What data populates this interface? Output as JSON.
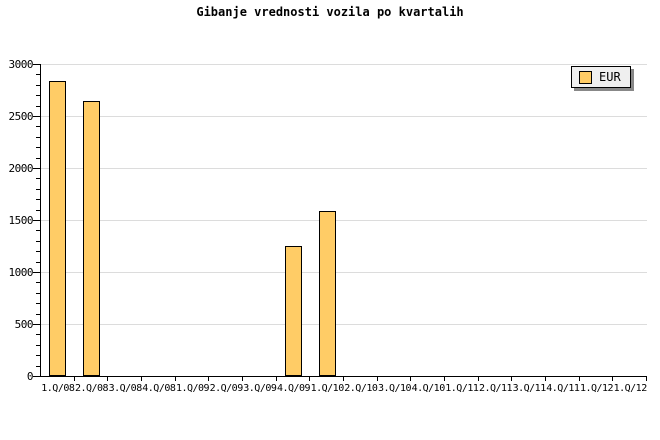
{
  "window": {
    "background": "#FFFFFF"
  },
  "chart_data": {
    "type": "bar",
    "title": "Gibanje vrednosti vozila po kvartalih",
    "categories": [
      "1.Q/08",
      "2.Q/08",
      "3.Q/08",
      "4.Q/08",
      "1.Q/09",
      "2.Q/09",
      "3.Q/09",
      "4.Q/09",
      "1.Q/10",
      "2.Q/10",
      "3.Q/10",
      "4.Q/10",
      "1.Q/11",
      "2.Q/11",
      "3.Q/11",
      "4.Q/11",
      "1.Q/12",
      "1.Q/12"
    ],
    "series": [
      {
        "name": "EUR",
        "color": "#FFCC66",
        "values": [
          2840,
          2640,
          0,
          0,
          0,
          0,
          0,
          1250,
          1590,
          0,
          0,
          0,
          0,
          0,
          0,
          0,
          0,
          0
        ]
      }
    ],
    "xlabel": "",
    "ylabel": "",
    "ylim": [
      0,
      3000
    ],
    "ytick_step": 500,
    "yminor_step": 100,
    "ytick_labels": [
      "0",
      "500",
      "1000",
      "1500",
      "2000",
      "2500",
      "3000"
    ],
    "grid": "horizontal-major",
    "legend": {
      "label": "EUR",
      "position": "top-right",
      "background": "#EFEFEF",
      "shadow": "#888888"
    },
    "colors": {
      "axis": "#000000",
      "gridline": "#DCDCDC",
      "bar_border": "#000000",
      "text": "#000000"
    }
  }
}
